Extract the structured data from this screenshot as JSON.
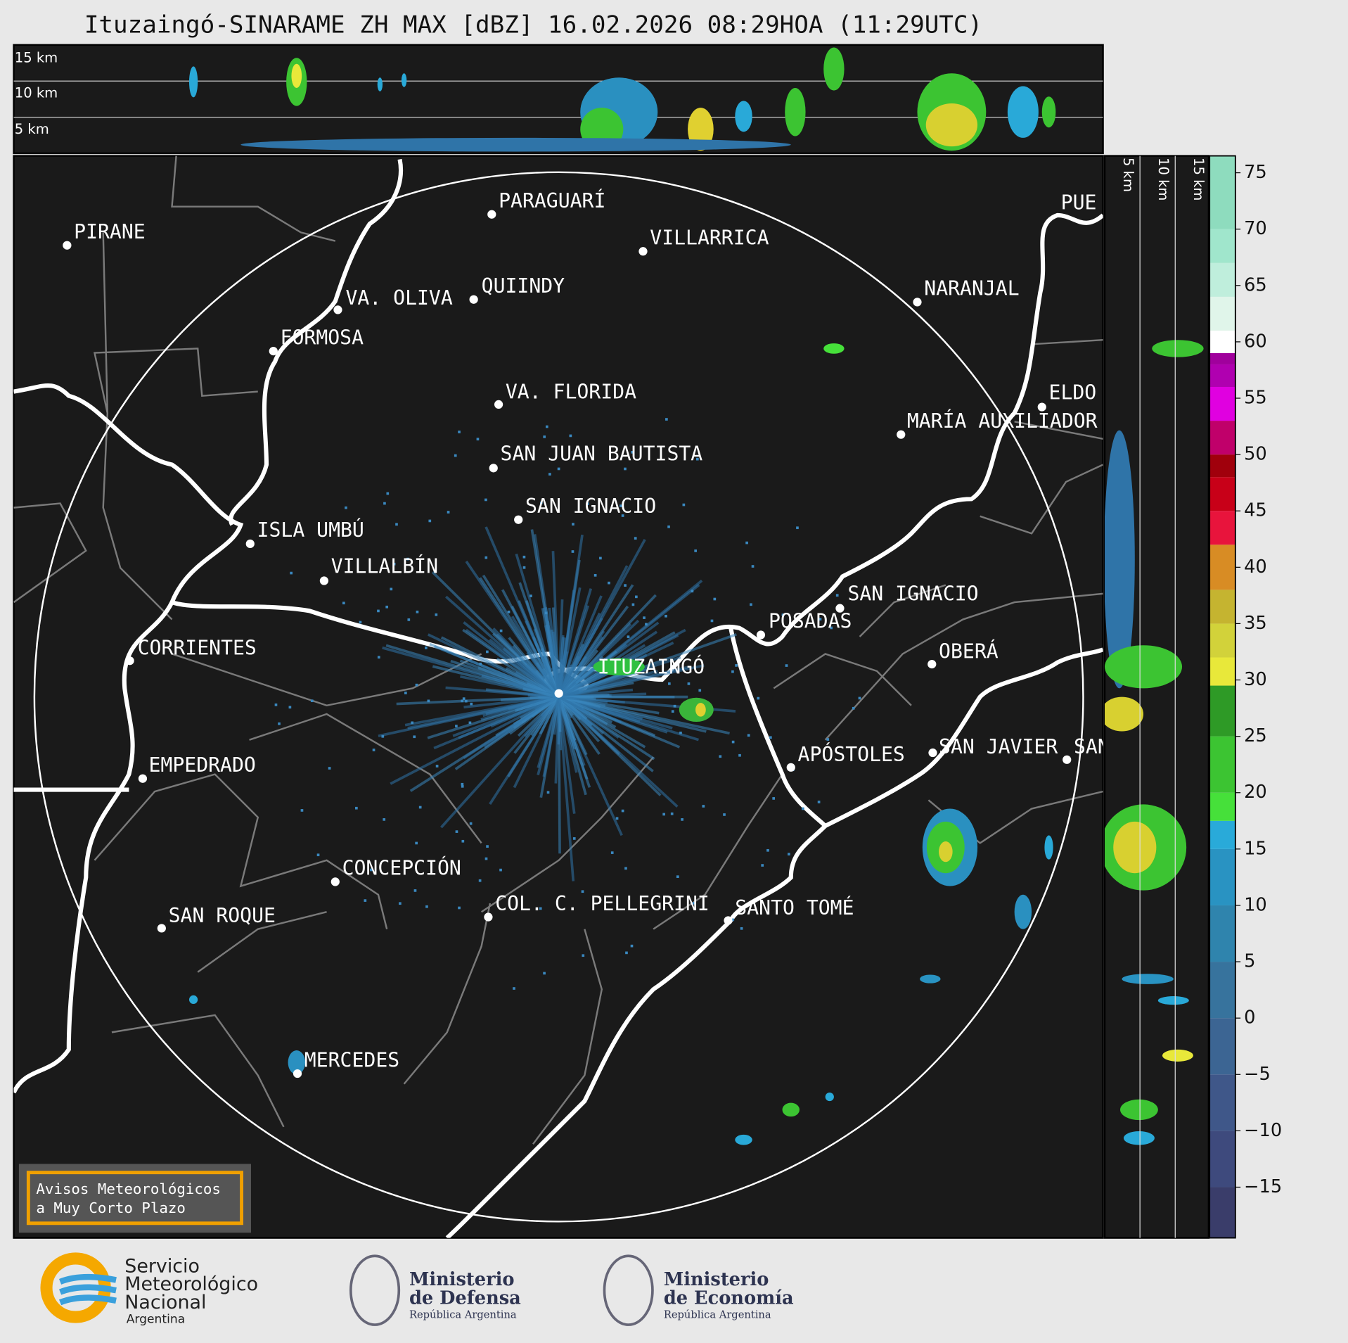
{
  "header": {
    "title": "Ituzaingó-SINARAME ZH MAX [dBZ] 16.02.2026 08:29HOA (11:29UTC)"
  },
  "top_section": {
    "labels": [
      "15 km",
      "10 km",
      "5 km"
    ]
  },
  "side_section": {
    "labels": [
      "5 km",
      "10 km",
      "15 km"
    ]
  },
  "map": {
    "places": [
      "PIRANE",
      "PARAGUARÍ",
      "VILLARRICA",
      "QUIINDY",
      "VA. OLIVA",
      "FORMOSA",
      "NARANJAL",
      "VA. FLORIDA",
      "ELDO",
      "PUE",
      "MARÍA AUXILIADOR",
      "SAN JUAN BAUTISTA",
      "SAN IGNACIO",
      "ISLA UMBÚ",
      "VILLALBÍN",
      "SAN IGNACIO",
      "POSADAS",
      "OBERÁ",
      "CORRIENTES",
      "ITUZAINGÓ",
      "APÓSTOLES",
      "SAN JAVIER",
      "SAN",
      "EMPEDRADO",
      "CONCEPCIÓN",
      "COL. C. PELLEGRINI",
      "SANTO TOMÉ",
      "SAN ROQUE",
      "MERCEDES"
    ]
  },
  "colorbar": {
    "range": [
      -19.5,
      76.5
    ],
    "ticks": [
      75,
      70,
      65,
      60,
      55,
      50,
      45,
      40,
      35,
      30,
      25,
      20,
      15,
      10,
      5,
      0,
      {
        "value": -5,
        "label": "−5"
      },
      {
        "value": -10,
        "label": "−10"
      },
      {
        "value": -15,
        "label": "−15"
      }
    ]
  },
  "warning_box": {
    "lines": [
      "Avisos Meteorológicos",
      "a Muy Corto Plazo"
    ]
  },
  "footer": {
    "smn": [
      "Servicio",
      "Meteorológico",
      "Nacional",
      "Argentina"
    ],
    "defensa": [
      "Ministerio",
      "de Defensa",
      "República Argentina"
    ],
    "economia": [
      "Ministerio",
      "de Economía",
      "República Argentina"
    ]
  }
}
